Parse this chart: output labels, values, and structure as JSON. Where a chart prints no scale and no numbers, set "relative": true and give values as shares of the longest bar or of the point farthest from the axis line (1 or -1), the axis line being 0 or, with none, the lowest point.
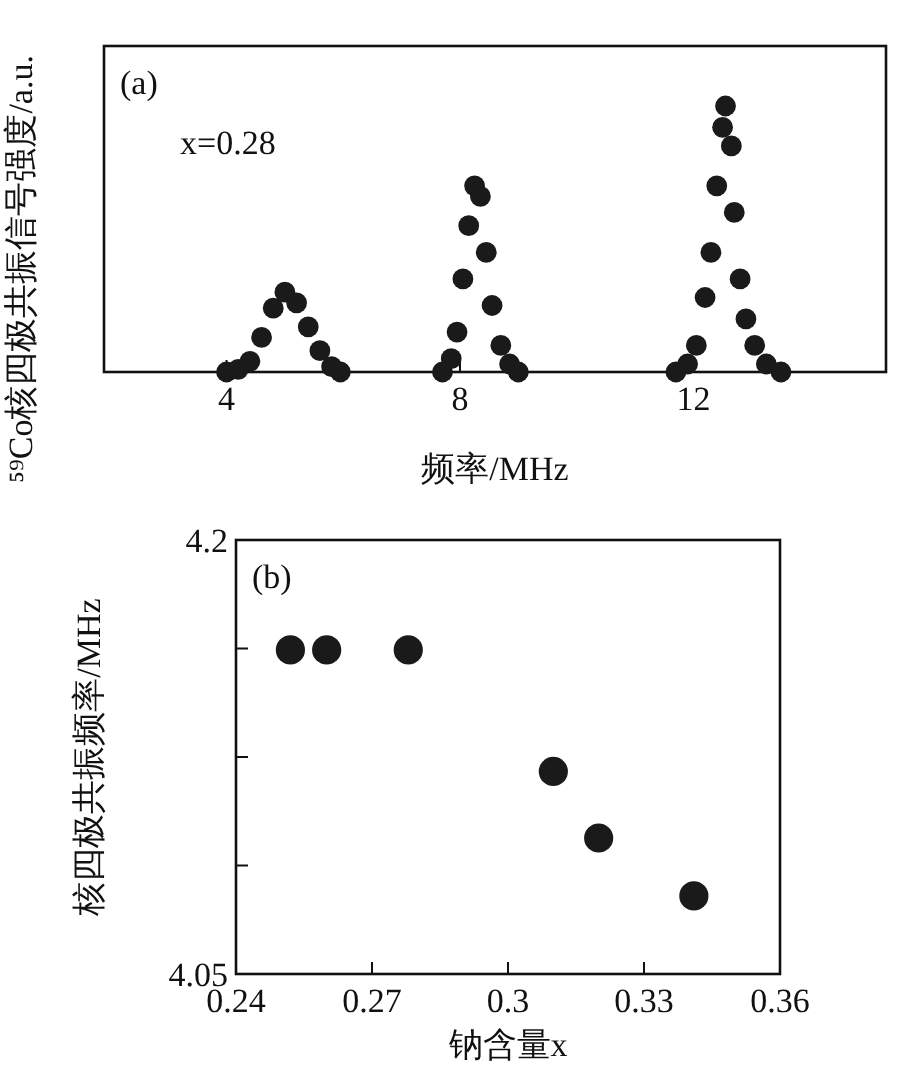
{
  "chart_data": [
    {
      "type": "scatter",
      "relative": true,
      "xlabel": "频率/MHz",
      "ylabel": "⁵⁹Co核四极共振信号强度/a.u.",
      "annotations": [
        "(a)",
        "x=0.28"
      ],
      "marker": "circle",
      "grid": false,
      "xlim": [
        1.9,
        15.3
      ],
      "xticks": [
        4,
        8,
        12
      ],
      "series": [
        {
          "color": "#1a1a1a",
          "x": [
            4.0,
            4.2,
            4.4,
            4.6,
            4.8,
            5.0,
            5.2,
            5.4,
            5.6,
            5.8,
            5.95,
            7.7,
            7.85,
            7.95,
            8.05,
            8.15,
            8.25,
            8.35,
            8.45,
            8.55,
            8.7,
            8.85,
            9.0,
            11.7,
            11.9,
            12.05,
            12.2,
            12.3,
            12.4,
            12.5,
            12.55,
            12.65,
            12.7,
            12.8,
            12.9,
            13.05,
            13.25,
            13.5
          ],
          "values": [
            0,
            0.01,
            0.04,
            0.13,
            0.24,
            0.3,
            0.26,
            0.17,
            0.08,
            0.02,
            0,
            0,
            0.05,
            0.15,
            0.35,
            0.55,
            0.7,
            0.66,
            0.45,
            0.25,
            0.1,
            0.03,
            0,
            0,
            0.03,
            0.1,
            0.28,
            0.45,
            0.7,
            0.92,
            1.0,
            0.85,
            0.6,
            0.35,
            0.2,
            0.1,
            0.03,
            0
          ]
        }
      ]
    },
    {
      "type": "scatter",
      "xlabel": "钠含量x",
      "ylabel": "核四极共振频率/MHz",
      "annotations": [
        "(b)"
      ],
      "marker": "circle",
      "grid": false,
      "xlim": [
        0.24,
        0.36
      ],
      "xticks": [
        0.24,
        0.27,
        0.3,
        0.33,
        0.36
      ],
      "ylim": [
        4.05,
        4.2
      ],
      "yticks": [
        4.05,
        {
          "value": 4.0875,
          "label": null
        },
        {
          "value": 4.125,
          "label": null
        },
        {
          "value": 4.1625,
          "label": null
        },
        4.2
      ],
      "series": [
        {
          "color": "#1a1a1a",
          "x": [
            0.252,
            0.26,
            0.278,
            0.31,
            0.32,
            0.341
          ],
          "values": [
            4.162,
            4.162,
            4.162,
            4.12,
            4.097,
            4.077
          ]
        }
      ]
    }
  ]
}
